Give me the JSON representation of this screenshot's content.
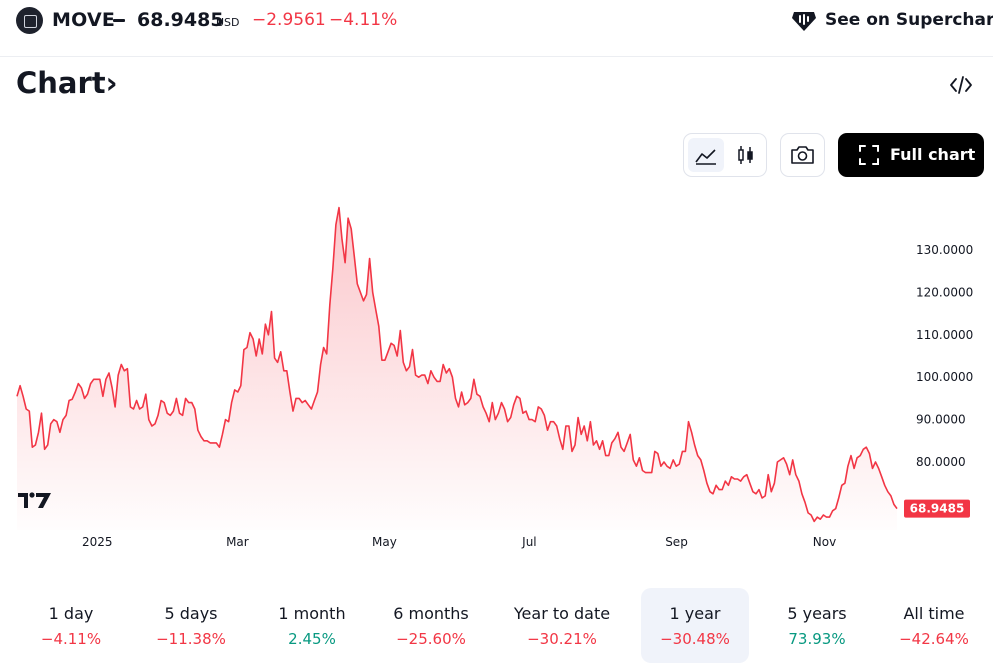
{
  "header": {
    "symbol": "MOVE",
    "price": "68.9485",
    "currency": "USD",
    "change": "−2.9561",
    "change_pct": "−4.11%",
    "supercharts_label": "See on Supercharts"
  },
  "title": "Chart",
  "title_arrow": "›",
  "toolbar": {
    "full_chart_label": "Full chart",
    "modes": [
      "area-chart-icon",
      "candles-icon"
    ],
    "camera": "camera-icon"
  },
  "chart_data": {
    "type": "area",
    "line_color": "#f23645",
    "ylim": [
      62,
      142
    ],
    "y_ticks": [
      {
        "v": 80,
        "label": "80.0000"
      },
      {
        "v": 90,
        "label": "90.0000"
      },
      {
        "v": 100,
        "label": "100.0000"
      },
      {
        "v": 110,
        "label": "110.0000"
      },
      {
        "v": 120,
        "label": "120.0000"
      },
      {
        "v": 130,
        "label": "130.0000"
      }
    ],
    "x_ticks": [
      {
        "label": "2025",
        "frac": 0.0913
      },
      {
        "label": "Mar",
        "frac": 0.2505
      },
      {
        "label": "May",
        "frac": 0.4175
      },
      {
        "label": "Jul",
        "frac": 0.5823
      },
      {
        "label": "Sep",
        "frac": 0.7494
      },
      {
        "label": "Nov",
        "frac": 0.9176
      }
    ],
    "last_value": "68.9485",
    "values": [
      95.5,
      98,
      95.5,
      92.5,
      92,
      83.5,
      84,
      87,
      91.5,
      83,
      84,
      89,
      90,
      89.5,
      87,
      90,
      91,
      94.5,
      94.8,
      96.5,
      98.5,
      97.5,
      95,
      96,
      98.5,
      99.5,
      99.5,
      99.5,
      95.5,
      99.5,
      101,
      97.5,
      93,
      100.5,
      103,
      101.5,
      102,
      93,
      92.5,
      94.5,
      92.5,
      93,
      96,
      90,
      88.5,
      89,
      91,
      94.5,
      94,
      91.5,
      91,
      92,
      95,
      91.5,
      91,
      95,
      94,
      94,
      92.5,
      87.5,
      86,
      85,
      85,
      84.5,
      84.5,
      84.5,
      83.5,
      86.5,
      90,
      89.5,
      94,
      97,
      96.5,
      98,
      106.5,
      107,
      110.5,
      109,
      105,
      109,
      105.5,
      112.5,
      110,
      115.5,
      104.5,
      103.5,
      106,
      101.5,
      101.5,
      96.5,
      92,
      95,
      95,
      94,
      94.5,
      93.5,
      92.5,
      94.5,
      96.5,
      103,
      107,
      105.5,
      117,
      125.5,
      136,
      140,
      132.5,
      127,
      137.5,
      135,
      128.5,
      122,
      120,
      118,
      119.5,
      128,
      120,
      116,
      112,
      104,
      104,
      106,
      108,
      107.5,
      105,
      111,
      103.5,
      101.5,
      102.5,
      106.5,
      100.5,
      100,
      100.5,
      100.5,
      98.5,
      101.5,
      100,
      99,
      99,
      103,
      101,
      102,
      100,
      95,
      93,
      96.5,
      93.5,
      94,
      95,
      99.5,
      96,
      95.5,
      93,
      91.5,
      89.5,
      94,
      90,
      91.5,
      94,
      92.5,
      89.5,
      90.5,
      93.5,
      95.5,
      95,
      91.5,
      92,
      90,
      90,
      89.5,
      93,
      92.5,
      91,
      87.5,
      89.5,
      89.5,
      88.5,
      85.5,
      83,
      88.5,
      88.5,
      82.5,
      84,
      90.5,
      86.5,
      88.5,
      85,
      89.5,
      84,
      85,
      83,
      85,
      81.5,
      81.5,
      84.5,
      85.5,
      87,
      83.5,
      82.5,
      84.5,
      86.5,
      80.5,
      79,
      81,
      78,
      77.5,
      77.5,
      77.5,
      82.5,
      82,
      79,
      80,
      79,
      78.5,
      80.5,
      79,
      79.5,
      82.5,
      82.5,
      89.5,
      87,
      84,
      81.5,
      80.5,
      78,
      75,
      73,
      72.5,
      74.5,
      73.5,
      73.5,
      75.5,
      74.5,
      76.5,
      76,
      76,
      75.5,
      76.5,
      77,
      75,
      73,
      72.5,
      73.5,
      71.5,
      72,
      77,
      73,
      75,
      80,
      80.5,
      81,
      79.5,
      77,
      80.5,
      77,
      75.5,
      72.5,
      70.5,
      68,
      67.5,
      66,
      67,
      66.5,
      67.5,
      67,
      67,
      68.5,
      69,
      71.5,
      74.5,
      75,
      79,
      81.5,
      78.5,
      81,
      81.5,
      83,
      83.5,
      82,
      78.5,
      80,
      78.5,
      76.5,
      74.5,
      73,
      72,
      70,
      69
    ]
  },
  "periods": [
    {
      "label": "1 day",
      "value": "−4.11%",
      "trend": "neg"
    },
    {
      "label": "5 days",
      "value": "−11.38%",
      "trend": "neg"
    },
    {
      "label": "1 month",
      "value": "2.45%",
      "trend": "pos"
    },
    {
      "label": "6 months",
      "value": "−25.60%",
      "trend": "neg"
    },
    {
      "label": "Year to date",
      "value": "−30.21%",
      "trend": "neg"
    },
    {
      "label": "1 year",
      "value": "−30.48%",
      "trend": "neg",
      "active": true
    },
    {
      "label": "5 years",
      "value": "73.93%",
      "trend": "pos"
    },
    {
      "label": "All time",
      "value": "−42.64%",
      "trend": "neg"
    }
  ]
}
